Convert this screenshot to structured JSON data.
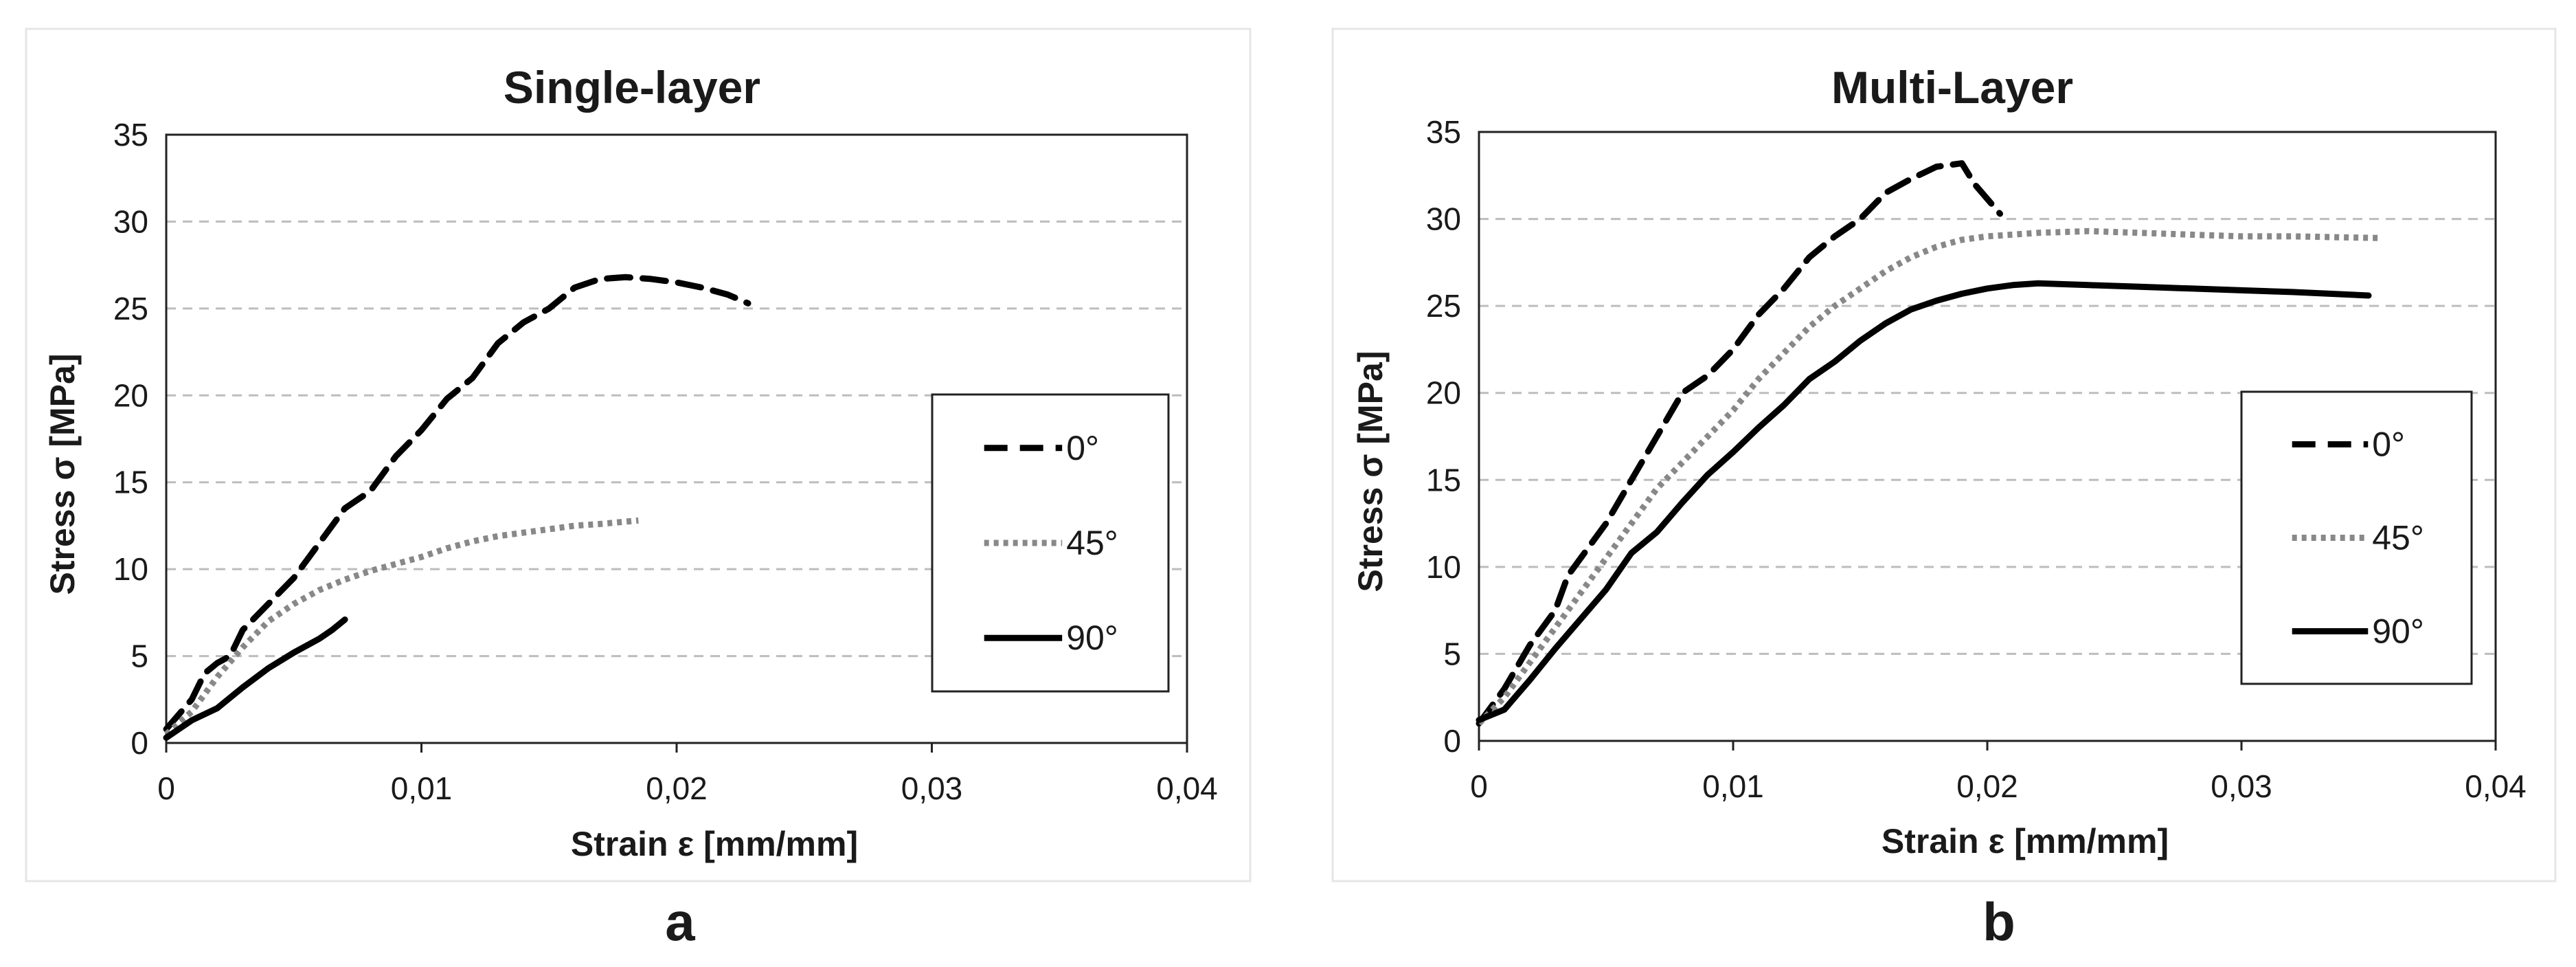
{
  "chart_data": [
    {
      "type": "line",
      "panel_label": "a",
      "title": "Single-layer",
      "xlabel": "Strain ε [mm/mm]",
      "ylabel": "Stress σ [MPa]",
      "xlim": [
        0,
        0.04
      ],
      "ylim": [
        0,
        35
      ],
      "xticks": [
        0,
        0.01,
        0.02,
        0.03,
        0.04
      ],
      "xtick_labels": [
        "0",
        "0,01",
        "0,02",
        "0,03",
        "0,04"
      ],
      "yticks": [
        0,
        5,
        10,
        15,
        20,
        25,
        30,
        35
      ],
      "ytick_labels": [
        "0",
        "5",
        "10",
        "15",
        "20",
        "25",
        "30",
        "35"
      ],
      "grid": "horizontal dashed",
      "legend_position": "right",
      "series": [
        {
          "name": "0°",
          "style": "dashed",
          "color": "#000000",
          "points": [
            [
              0,
              0.8
            ],
            [
              0.001,
              2.5
            ],
            [
              0.0015,
              4.0
            ],
            [
              0.002,
              4.6
            ],
            [
              0.0025,
              5.0
            ],
            [
              0.003,
              6.5
            ],
            [
              0.004,
              8.0
            ],
            [
              0.005,
              9.5
            ],
            [
              0.006,
              11.5
            ],
            [
              0.007,
              13.5
            ],
            [
              0.008,
              14.5
            ],
            [
              0.009,
              16.5
            ],
            [
              0.01,
              18.0
            ],
            [
              0.011,
              19.8
            ],
            [
              0.012,
              21.0
            ],
            [
              0.013,
              23.0
            ],
            [
              0.014,
              24.2
            ],
            [
              0.015,
              25.0
            ],
            [
              0.016,
              26.2
            ],
            [
              0.017,
              26.7
            ],
            [
              0.018,
              26.8
            ],
            [
              0.019,
              26.7
            ],
            [
              0.02,
              26.5
            ],
            [
              0.021,
              26.2
            ],
            [
              0.022,
              25.8
            ],
            [
              0.0228,
              25.3
            ]
          ]
        },
        {
          "name": "45°",
          "style": "dotted",
          "color": "#888888",
          "points": [
            [
              0,
              0.5
            ],
            [
              0.001,
              1.8
            ],
            [
              0.002,
              3.8
            ],
            [
              0.003,
              5.5
            ],
            [
              0.004,
              7.0
            ],
            [
              0.005,
              8.0
            ],
            [
              0.006,
              8.8
            ],
            [
              0.007,
              9.4
            ],
            [
              0.008,
              9.9
            ],
            [
              0.009,
              10.3
            ],
            [
              0.01,
              10.7
            ],
            [
              0.011,
              11.2
            ],
            [
              0.012,
              11.6
            ],
            [
              0.013,
              11.9
            ],
            [
              0.014,
              12.1
            ],
            [
              0.015,
              12.3
            ],
            [
              0.016,
              12.5
            ],
            [
              0.017,
              12.6
            ],
            [
              0.0185,
              12.8
            ]
          ]
        },
        {
          "name": "90°",
          "style": "solid",
          "color": "#000000",
          "points": [
            [
              0,
              0.3
            ],
            [
              0.001,
              1.3
            ],
            [
              0.002,
              2.0
            ],
            [
              0.003,
              3.2
            ],
            [
              0.004,
              4.3
            ],
            [
              0.005,
              5.2
            ],
            [
              0.006,
              6.0
            ],
            [
              0.0065,
              6.5
            ],
            [
              0.007,
              7.1
            ]
          ]
        }
      ]
    },
    {
      "type": "line",
      "panel_label": "b",
      "title": "Multi-Layer",
      "xlabel": "Strain ε [mm/mm]",
      "ylabel": "Stress σ [MPa]",
      "xlim": [
        0,
        0.04
      ],
      "ylim": [
        0,
        35
      ],
      "xticks": [
        0,
        0.01,
        0.02,
        0.03,
        0.04
      ],
      "xtick_labels": [
        "0",
        "0,01",
        "0,02",
        "0,03",
        "0,04"
      ],
      "yticks": [
        0,
        5,
        10,
        15,
        20,
        25,
        30,
        35
      ],
      "ytick_labels": [
        "0",
        "5",
        "10",
        "15",
        "20",
        "25",
        "30",
        "35"
      ],
      "grid": "horizontal dashed",
      "legend_position": "right",
      "series": [
        {
          "name": "0°",
          "style": "dashed",
          "color": "#000000",
          "points": [
            [
              0,
              1.0
            ],
            [
              0.001,
              3.0
            ],
            [
              0.002,
              5.5
            ],
            [
              0.003,
              7.5
            ],
            [
              0.0035,
              9.5
            ],
            [
              0.004,
              10.5
            ],
            [
              0.005,
              12.5
            ],
            [
              0.006,
              15.0
            ],
            [
              0.007,
              17.5
            ],
            [
              0.008,
              20.0
            ],
            [
              0.009,
              21.0
            ],
            [
              0.01,
              22.5
            ],
            [
              0.011,
              24.5
            ],
            [
              0.012,
              26.0
            ],
            [
              0.013,
              27.8
            ],
            [
              0.014,
              29.0
            ],
            [
              0.015,
              30.0
            ],
            [
              0.016,
              31.5
            ],
            [
              0.017,
              32.3
            ],
            [
              0.018,
              33.0
            ],
            [
              0.019,
              33.2
            ],
            [
              0.0195,
              32.0
            ],
            [
              0.0205,
              30.3
            ]
          ]
        },
        {
          "name": "45°",
          "style": "dotted",
          "color": "#888888",
          "points": [
            [
              0,
              1.0
            ],
            [
              0.001,
              2.5
            ],
            [
              0.002,
              4.5
            ],
            [
              0.003,
              6.5
            ],
            [
              0.004,
              8.5
            ],
            [
              0.005,
              10.5
            ],
            [
              0.006,
              12.5
            ],
            [
              0.007,
              14.5
            ],
            [
              0.008,
              16.0
            ],
            [
              0.009,
              17.5
            ],
            [
              0.01,
              19.0
            ],
            [
              0.011,
              20.8
            ],
            [
              0.012,
              22.3
            ],
            [
              0.013,
              23.8
            ],
            [
              0.014,
              25.0
            ],
            [
              0.015,
              26.0
            ],
            [
              0.016,
              27.0
            ],
            [
              0.017,
              27.8
            ],
            [
              0.018,
              28.4
            ],
            [
              0.019,
              28.8
            ],
            [
              0.02,
              29.0
            ],
            [
              0.022,
              29.2
            ],
            [
              0.024,
              29.3
            ],
            [
              0.026,
              29.2
            ],
            [
              0.028,
              29.1
            ],
            [
              0.03,
              29.0
            ],
            [
              0.032,
              29.0
            ],
            [
              0.0355,
              28.9
            ]
          ]
        },
        {
          "name": "90°",
          "style": "solid",
          "color": "#000000",
          "points": [
            [
              0,
              1.2
            ],
            [
              0.001,
              1.8
            ],
            [
              0.002,
              3.5
            ],
            [
              0.003,
              5.3
            ],
            [
              0.004,
              7.0
            ],
            [
              0.005,
              8.7
            ],
            [
              0.006,
              10.8
            ],
            [
              0.007,
              12.0
            ],
            [
              0.008,
              13.7
            ],
            [
              0.009,
              15.3
            ],
            [
              0.01,
              16.6
            ],
            [
              0.011,
              18.0
            ],
            [
              0.012,
              19.3
            ],
            [
              0.013,
              20.8
            ],
            [
              0.014,
              21.8
            ],
            [
              0.015,
              23.0
            ],
            [
              0.016,
              24.0
            ],
            [
              0.017,
              24.8
            ],
            [
              0.018,
              25.3
            ],
            [
              0.019,
              25.7
            ],
            [
              0.02,
              26.0
            ],
            [
              0.021,
              26.2
            ],
            [
              0.022,
              26.3
            ],
            [
              0.024,
              26.2
            ],
            [
              0.026,
              26.1
            ],
            [
              0.028,
              26.0
            ],
            [
              0.03,
              25.9
            ],
            [
              0.032,
              25.8
            ],
            [
              0.035,
              25.6
            ]
          ]
        }
      ]
    }
  ]
}
